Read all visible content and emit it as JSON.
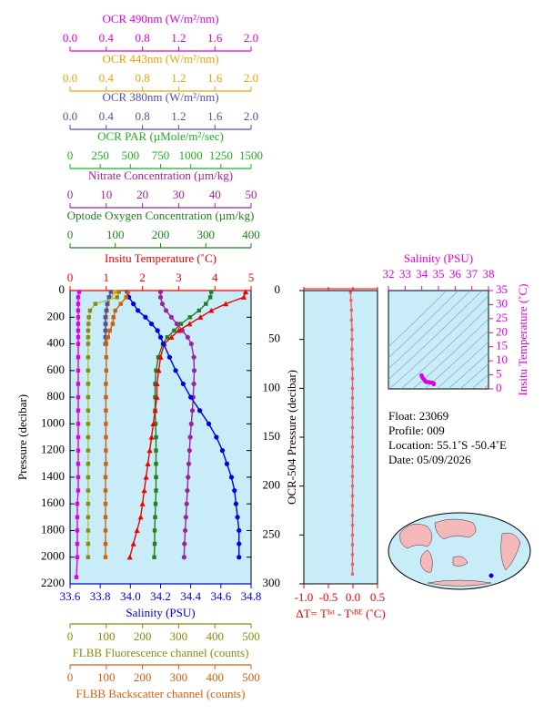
{
  "chart_data": [
    {
      "type": "profile",
      "ylabel": "Pressure (decibar)",
      "ylim": [
        2200,
        0
      ],
      "yticks": [
        0,
        200,
        400,
        600,
        800,
        1000,
        1200,
        1400,
        1600,
        1800,
        2000,
        2200
      ],
      "background": "#c8ecf8",
      "pressure": [
        10,
        50,
        100,
        150,
        200,
        250,
        300,
        350,
        400,
        500,
        600,
        700,
        800,
        900,
        1000,
        1100,
        1200,
        1300,
        1400,
        1500,
        1600,
        1700,
        1800,
        1900,
        2000,
        2150
      ],
      "axes": [
        {
          "label": "OCR 490nm (W/m²/nm)",
          "position": "top",
          "color": "#e000e0",
          "marker": "square",
          "xlim": [
            0,
            2
          ],
          "xticks": [
            {
              "value": 0,
              "label": "0.0"
            },
            0.4,
            0.8,
            1.2,
            1.6,
            {
              "value": 2,
              "label": "2.0"
            }
          ],
          "values": [
            0.1,
            0.09,
            0.09,
            0.09,
            0.09,
            0.09,
            0.09,
            0.09,
            0.09,
            0.09,
            0.09,
            0.09,
            0.09,
            0.09,
            0.09,
            0.09,
            0.09,
            0.09,
            0.09,
            0.09,
            0.08,
            0.08,
            0.08,
            0.08,
            0.08,
            0.07
          ]
        },
        {
          "label": "OCR 443nm (W/m²/nm)",
          "position": "top",
          "color": "#f0a000",
          "marker": "square",
          "xlim": [
            0,
            2
          ],
          "xticks": [
            {
              "value": 0,
              "label": "0.0"
            },
            0.4,
            0.8,
            1.2,
            1.6,
            {
              "value": 2,
              "label": "2.0"
            }
          ],
          "values": [
            0.5,
            0.45,
            0.42,
            0.41,
            0.4,
            0.4,
            0.4,
            0.4,
            0.4,
            null,
            null,
            null,
            null,
            null,
            null,
            null,
            null,
            null,
            null,
            null,
            null,
            null,
            null,
            null,
            null,
            null
          ]
        },
        {
          "label": "OCR 380nm (W/m²/nm)",
          "position": "top",
          "color": "#5050b0",
          "marker": "square",
          "xlim": [
            0,
            2
          ],
          "xticks": [
            {
              "value": 0,
              "label": "0.0"
            },
            0.4,
            0.8,
            1.2,
            1.6,
            {
              "value": 2,
              "label": "2.0"
            }
          ],
          "values": [
            0.45,
            0.43,
            0.41,
            0.4,
            0.39,
            0.39,
            0.39,
            0.39,
            0.39,
            null,
            null,
            null,
            null,
            null,
            null,
            null,
            null,
            null,
            null,
            null,
            null,
            null,
            null,
            null,
            null,
            null
          ]
        },
        {
          "label": "OCR PAR (µMole/m²/sec)",
          "position": "top",
          "color": "#20b020",
          "marker": "none",
          "xlim": [
            0,
            1500
          ],
          "xticks": [
            0,
            250,
            500,
            750,
            1000,
            1250,
            1500
          ]
        },
        {
          "label": "Nitrate Concentration (µm/kg)",
          "position": "top",
          "color": "#a020a0",
          "marker": "circle",
          "xlim": [
            0,
            50
          ],
          "xticks": [
            0,
            10,
            20,
            30,
            40,
            50
          ],
          "values": [
            25,
            25,
            25.5,
            26.5,
            28,
            29.5,
            31,
            32.5,
            33.5,
            34.2,
            34.3,
            34.2,
            34,
            33.8,
            33.5,
            33.2,
            33,
            32.8,
            32.6,
            32.4,
            32.2,
            32,
            31.8,
            31.6,
            31.5,
            null
          ]
        },
        {
          "label": "Optode Oxygen Concentration (µm/kg)",
          "position": "top",
          "color": "#208020",
          "marker": "square",
          "xlim": [
            0,
            400
          ],
          "xticks": [
            0,
            100,
            200,
            300,
            400
          ],
          "values": [
            312,
            310,
            300,
            285,
            265,
            245,
            230,
            215,
            205,
            195,
            190,
            188,
            188,
            188,
            189,
            190,
            190,
            190,
            190,
            190,
            189,
            188,
            187,
            187,
            186,
            null
          ]
        },
        {
          "label": "Insitu Temperature (˚C)",
          "position": "top",
          "color": "#f00000",
          "marker": "triangle",
          "xlim": [
            0,
            5
          ],
          "xticks": [
            0,
            1,
            2,
            3,
            4,
            5
          ],
          "values": [
            4.85,
            4.8,
            4.3,
            3.9,
            3.6,
            3.3,
            3,
            2.8,
            2.6,
            2.5,
            2.45,
            2.4,
            2.4,
            2.35,
            2.3,
            2.25,
            2.2,
            2.15,
            2.1,
            2.05,
            2,
            1.95,
            1.85,
            1.75,
            1.65,
            null
          ]
        },
        {
          "label": "Salinity (PSU)",
          "position": "bottom",
          "color": "#0000e0",
          "marker": "circle",
          "xlim": [
            33.6,
            34.8
          ],
          "xticks": [
            33.6,
            33.8,
            {
              "value": 34,
              "label": "34.0"
            },
            34.2,
            34.4,
            34.6,
            34.8
          ],
          "values": [
            33.98,
            33.99,
            34.02,
            34.05,
            34.1,
            34.14,
            34.18,
            34.2,
            34.22,
            34.26,
            34.3,
            34.35,
            34.4,
            34.46,
            34.52,
            34.57,
            34.61,
            34.64,
            34.67,
            34.69,
            34.7,
            34.71,
            34.72,
            34.72,
            34.72,
            null
          ]
        },
        {
          "label": "FLBB Fluorescence channel (counts)",
          "position": "bottom",
          "color": "#8a8a10",
          "line_color": "#a8c840",
          "marker": "square",
          "xlim": [
            0,
            500
          ],
          "xticks": [
            0,
            100,
            200,
            300,
            400,
            500
          ],
          "values": [
            135,
            130,
            70,
            55,
            52,
            51,
            50,
            50,
            50,
            50,
            50,
            50,
            50,
            50,
            50,
            50,
            50,
            50,
            50,
            50,
            50,
            50,
            50,
            50,
            50,
            null
          ]
        },
        {
          "label": "FLBB Backscatter channel (counts)",
          "position": "bottom",
          "color": "#d06010",
          "marker": "square",
          "xlim": [
            0,
            500
          ],
          "xticks": [
            0,
            100,
            200,
            300,
            400,
            500
          ],
          "values": [
            160,
            155,
            140,
            125,
            120,
            118,
            110,
            105,
            100,
            100,
            100,
            99,
            99,
            99,
            99,
            99,
            99,
            99,
            98,
            98,
            98,
            98,
            98,
            98,
            98,
            null
          ]
        }
      ]
    },
    {
      "type": "delta",
      "xlabel": "ΔT= Tᴵˢᵗ - Tˢᴮᴱ (˚C)",
      "ylabel": "OCR-504 Pressure (decibar)",
      "color": "#f06060",
      "label_color": "#f00000",
      "xlim": [
        -1,
        0.5
      ],
      "xticks": [
        {
          "value": -1,
          "label": "-1.0"
        },
        -0.5,
        {
          "value": 0,
          "label": "0.0"
        },
        0.5
      ],
      "ylim": [
        300,
        0
      ],
      "yticks": [
        0,
        50,
        100,
        150,
        200,
        250,
        300
      ],
      "pressure": [
        2,
        10,
        20,
        30,
        40,
        50,
        60,
        70,
        80,
        90,
        100,
        110,
        120,
        130,
        140,
        150,
        160,
        170,
        180,
        190,
        200,
        210,
        220,
        230,
        240,
        250,
        260,
        270,
        280,
        290
      ],
      "values": [
        -0.05,
        -0.04,
        -0.03,
        -0.03,
        -0.02,
        -0.02,
        -0.02,
        -0.02,
        -0.01,
        -0.01,
        -0.01,
        -0.01,
        -0.01,
        -0.01,
        -0.01,
        -0.01,
        -0.01,
        -0.01,
        -0.01,
        -0.01,
        -0.01,
        -0.01,
        -0.01,
        -0.01,
        -0.01,
        -0.01,
        -0.01,
        -0.01,
        -0.01,
        -0.01
      ]
    },
    {
      "type": "ts",
      "xlabel": "Salinity (PSU)",
      "ylabel": "Insitu Temperature (˚C)",
      "color": "#e000e0",
      "xlim": [
        32,
        38
      ],
      "xticks": [
        32,
        33,
        34,
        35,
        36,
        37,
        38
      ],
      "ylim": [
        0,
        35
      ],
      "yticks": [
        0,
        5,
        10,
        15,
        20,
        25,
        30,
        35
      ]
    }
  ],
  "info": [
    "Float:  23069",
    "Profile:  009",
    "Location:  55.1˚S  -50.4˚E",
    "Date:  05/09/2026"
  ]
}
